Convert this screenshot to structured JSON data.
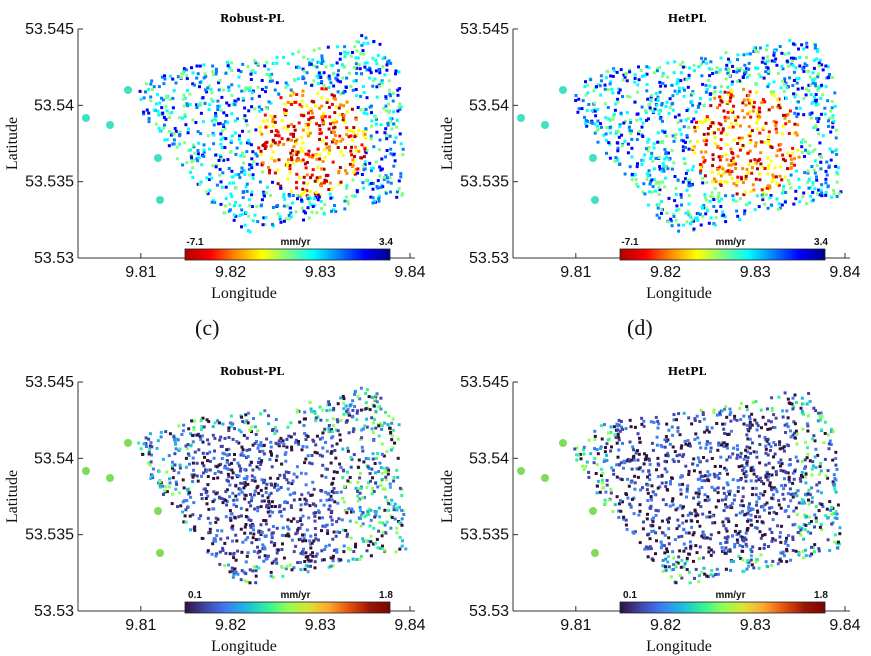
{
  "figure": {
    "captions": [
      "(c)",
      "(d)"
    ]
  },
  "chart_data": [
    {
      "type": "scatter",
      "title": "Robust-PL",
      "xlabel": "Longitude",
      "ylabel": "Latitude",
      "xticks": [
        "9.81",
        "9.82",
        "9.83",
        "9.84"
      ],
      "yticks": [
        "53.545",
        "53.54",
        "53.535",
        "53.53"
      ],
      "xlim": [
        9.803,
        9.84
      ],
      "ylim": [
        53.53,
        53.545
      ],
      "colorbar": {
        "min": "-7.1",
        "max": "3.4",
        "unit": "mm/yr",
        "colormap": "jet-reversed"
      }
    },
    {
      "type": "scatter",
      "title": "HetPL",
      "xlabel": "Longitude",
      "ylabel": "Latitude",
      "xticks": [
        "9.81",
        "9.82",
        "9.83",
        "9.84"
      ],
      "yticks": [
        "53.545",
        "53.54",
        "53.535",
        "53.53"
      ],
      "xlim": [
        9.803,
        9.84
      ],
      "ylim": [
        53.53,
        53.545
      ],
      "colorbar": {
        "min": "-7.1",
        "max": "3.4",
        "unit": "mm/yr",
        "colormap": "jet-reversed"
      }
    },
    {
      "type": "scatter",
      "title": "Robust-PL",
      "xlabel": "Longitude",
      "ylabel": "Latitude",
      "xticks": [
        "9.81",
        "9.82",
        "9.83",
        "9.84"
      ],
      "yticks": [
        "53.545",
        "53.54",
        "53.535",
        "53.53"
      ],
      "xlim": [
        9.803,
        9.84
      ],
      "ylim": [
        53.53,
        53.545
      ],
      "colorbar": {
        "min": "0.1",
        "max": "1.8",
        "unit": "mm/yr",
        "colormap": "turbo"
      }
    },
    {
      "type": "scatter",
      "title": "HetPL",
      "xlabel": "Longitude",
      "ylabel": "Latitude",
      "xticks": [
        "9.81",
        "9.82",
        "9.83",
        "9.84"
      ],
      "yticks": [
        "53.545",
        "53.54",
        "53.535",
        "53.53"
      ],
      "xlim": [
        9.803,
        9.84
      ],
      "ylim": [
        53.53,
        53.545
      ],
      "colorbar": {
        "min": "0.1",
        "max": "1.8",
        "unit": "mm/yr",
        "colormap": "turbo"
      }
    }
  ]
}
